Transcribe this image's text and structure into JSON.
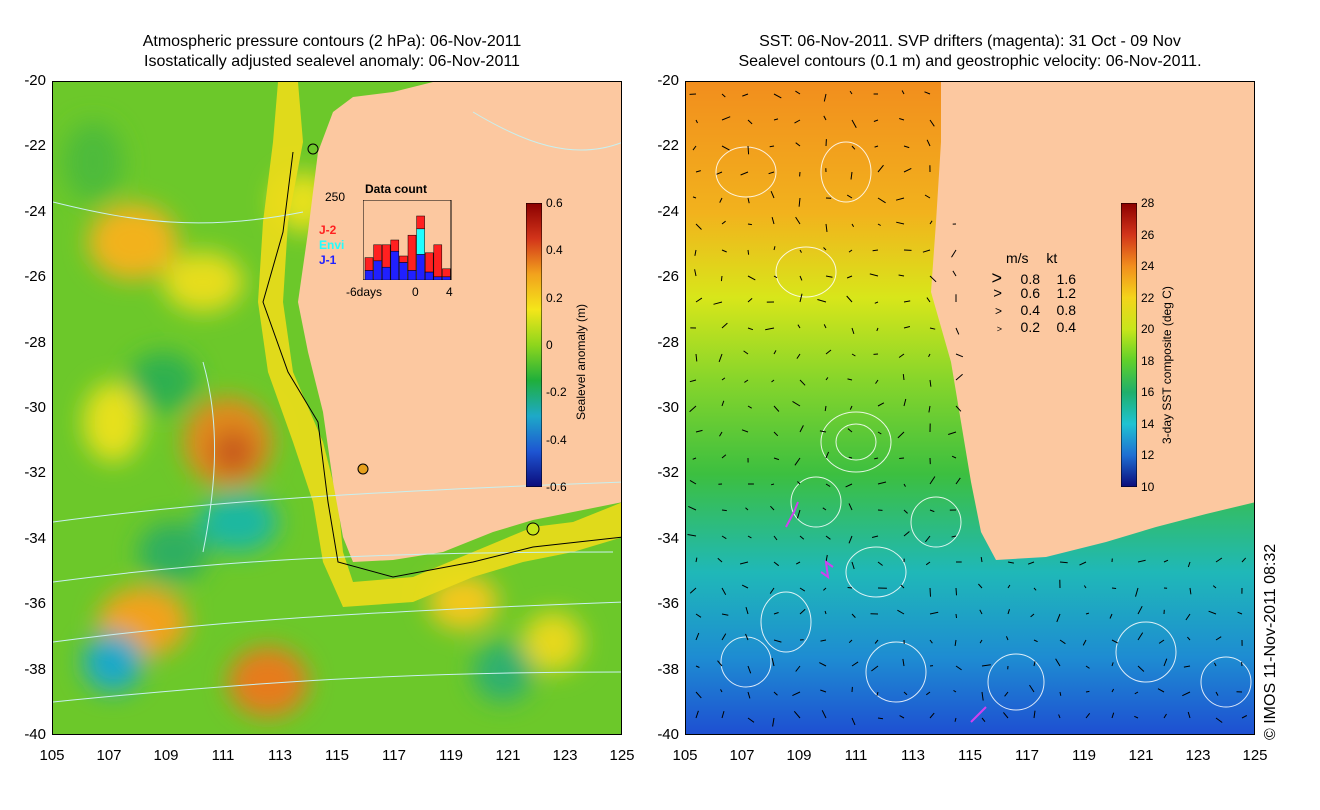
{
  "left_panel": {
    "title_line1": "Atmospheric pressure contours (2 hPa): 06-Nov-2011",
    "title_line2": "Isostatically adjusted sealevel anomaly: 06-Nov-2011",
    "y_ticks": [
      "-20",
      "-22",
      "-24",
      "-26",
      "-28",
      "-30",
      "-32",
      "-34",
      "-36",
      "-38",
      "-40"
    ],
    "x_ticks": [
      "105",
      "107",
      "109",
      "111",
      "113",
      "115",
      "117",
      "119",
      "121",
      "123",
      "125"
    ],
    "colorbar": {
      "label": "Sealevel anomaly (m)",
      "ticks": [
        "0.6",
        "0.4",
        "0.2",
        "0",
        "-0.2",
        "-0.4",
        "-0.6"
      ],
      "colors": [
        "#8b0000",
        "#d2341a",
        "#f2a21d",
        "#f4e61a",
        "#8ed61c",
        "#1faf3b",
        "#1ea9c8",
        "#1e55d2",
        "#0b0b7a"
      ]
    },
    "inset": {
      "title": "Data count",
      "ymax": "250",
      "satellites": [
        {
          "name": "J-2",
          "color": "#ff2020"
        },
        {
          "name": "Envi",
          "color": "#20ffff"
        },
        {
          "name": "J-1",
          "color": "#2020ff"
        }
      ],
      "x_ticks": [
        "-6days",
        "0",
        "4"
      ],
      "bars": [
        {
          "day": -6,
          "j2": 40,
          "envi": 0,
          "j1": 30
        },
        {
          "day": -5,
          "j2": 50,
          "envi": 0,
          "j1": 60
        },
        {
          "day": -4,
          "j2": 70,
          "envi": 0,
          "j1": 40
        },
        {
          "day": -3,
          "j2": 35,
          "envi": 0,
          "j1": 90
        },
        {
          "day": -2,
          "j2": 20,
          "envi": 0,
          "j1": 55
        },
        {
          "day": -1,
          "j2": 110,
          "envi": 0,
          "j1": 30
        },
        {
          "day": 0,
          "j2": 40,
          "envi": 80,
          "j1": 80
        },
        {
          "day": 1,
          "j2": 60,
          "envi": 0,
          "j1": 25
        },
        {
          "day": 2,
          "j2": 100,
          "envi": 0,
          "j1": 10
        },
        {
          "day": 3,
          "j2": 25,
          "envi": 0,
          "j1": 10
        }
      ]
    }
  },
  "right_panel": {
    "title_line1": "SST: 06-Nov-2011. SVP drifters (magenta): 31 Oct - 09 Nov",
    "title_line2": "Sealevel contours (0.1 m) and geostrophic velocity: 06-Nov-2011.",
    "y_ticks": [
      "-20",
      "-22",
      "-24",
      "-26",
      "-28",
      "-30",
      "-32",
      "-34",
      "-36",
      "-38",
      "-40"
    ],
    "x_ticks": [
      "105",
      "107",
      "109",
      "111",
      "113",
      "115",
      "117",
      "119",
      "121",
      "123",
      "125"
    ],
    "colorbar": {
      "label": "3-day SST composite (deg C)",
      "ticks": [
        "28",
        "26",
        "24",
        "22",
        "20",
        "18",
        "16",
        "14",
        "12",
        "10"
      ],
      "colors": [
        "#8b0000",
        "#d2341a",
        "#f28e1d",
        "#f4d41a",
        "#c8e61a",
        "#5fd02a",
        "#1faf6b",
        "#1ec3d2",
        "#1e6ed2",
        "#0b0b7a"
      ]
    },
    "velocity_legend": {
      "header_ms": "m/s",
      "header_kt": "kt",
      "rows": [
        {
          "ms": "0.8",
          "kt": "1.6"
        },
        {
          "ms": "0.6",
          "kt": "1.2"
        },
        {
          "ms": "0.4",
          "kt": "0.8"
        },
        {
          "ms": "0.2",
          "kt": "0.4"
        }
      ]
    }
  },
  "copyright": "© IMOS 11-Nov-2011 08:32",
  "land_color": "#fcc8a0"
}
